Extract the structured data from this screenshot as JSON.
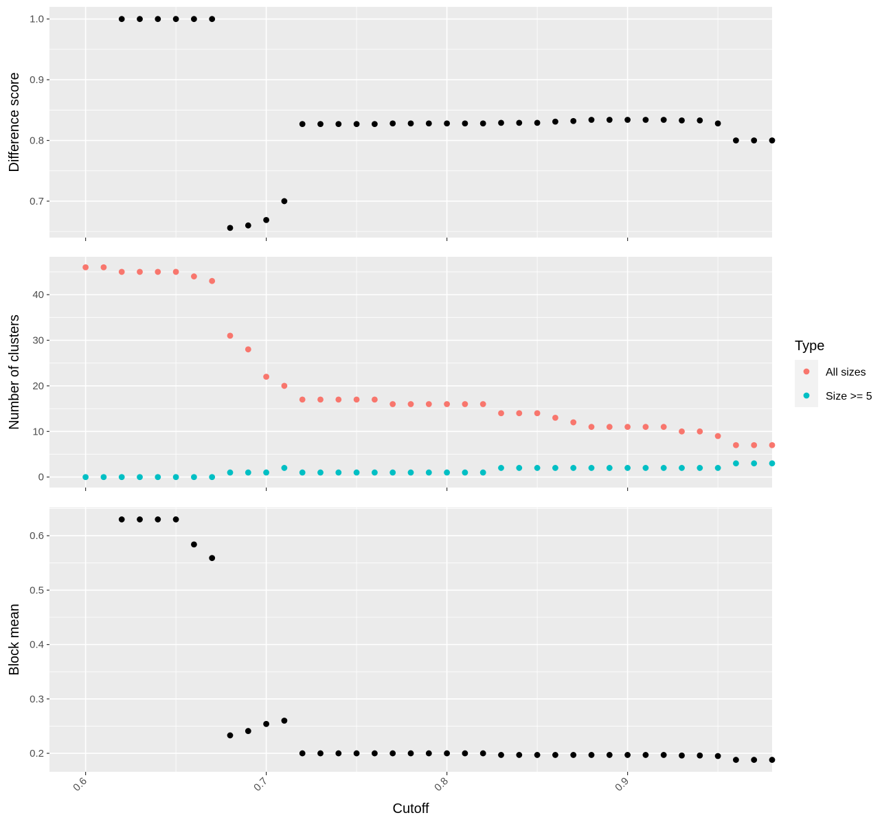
{
  "chart_data": [
    {
      "type": "scatter",
      "ylabel": "Difference score",
      "ylim": [
        0.64,
        1.02
      ],
      "yticks": [
        0.7,
        0.8,
        0.9,
        1.0
      ],
      "ytick_labels": [
        "0.7",
        "0.8",
        "0.9",
        "1.0"
      ],
      "xlim": [
        0.58,
        0.98
      ],
      "xticks": [
        0.6,
        0.7,
        0.8,
        0.9
      ],
      "grid": true,
      "series": [
        {
          "color": "#000000",
          "x": [
            0.62,
            0.63,
            0.64,
            0.65,
            0.66,
            0.67,
            0.68,
            0.69,
            0.7,
            0.71,
            0.72,
            0.73,
            0.74,
            0.75,
            0.76,
            0.77,
            0.78,
            0.79,
            0.8,
            0.81,
            0.82,
            0.83,
            0.84,
            0.85,
            0.86,
            0.87,
            0.88,
            0.89,
            0.9,
            0.91,
            0.92,
            0.93,
            0.94,
            0.95,
            0.96,
            0.97,
            0.98
          ],
          "y": [
            1.0,
            1.0,
            1.0,
            1.0,
            1.0,
            1.0,
            0.656,
            0.66,
            0.669,
            0.7,
            0.827,
            0.827,
            0.827,
            0.827,
            0.827,
            0.828,
            0.828,
            0.828,
            0.828,
            0.828,
            0.828,
            0.829,
            0.829,
            0.829,
            0.831,
            0.832,
            0.834,
            0.834,
            0.834,
            0.834,
            0.834,
            0.833,
            0.833,
            0.828,
            0.8,
            0.8,
            0.8
          ]
        }
      ]
    },
    {
      "type": "scatter",
      "ylabel": "Number of clusters",
      "ylim": [
        -2.3,
        48.3
      ],
      "yticks": [
        0,
        10,
        20,
        30,
        40
      ],
      "ytick_labels": [
        "0",
        "10",
        "20",
        "30",
        "40"
      ],
      "xlim": [
        0.58,
        0.98
      ],
      "xticks": [
        0.6,
        0.7,
        0.8,
        0.9
      ],
      "grid": true,
      "legend": {
        "title": "Type",
        "placement": "right",
        "entries": [
          {
            "label": "All sizes",
            "color": "#F8766D"
          },
          {
            "label": "Size >= 5",
            "color": "#00BFC4"
          }
        ]
      },
      "series": [
        {
          "name": "All sizes",
          "color": "#F8766D",
          "x": [
            0.6,
            0.61,
            0.62,
            0.63,
            0.64,
            0.65,
            0.66,
            0.67,
            0.68,
            0.69,
            0.7,
            0.71,
            0.72,
            0.73,
            0.74,
            0.75,
            0.76,
            0.77,
            0.78,
            0.79,
            0.8,
            0.81,
            0.82,
            0.83,
            0.84,
            0.85,
            0.86,
            0.87,
            0.88,
            0.89,
            0.9,
            0.91,
            0.92,
            0.93,
            0.94,
            0.95,
            0.96,
            0.97,
            0.98
          ],
          "y": [
            46,
            46,
            45,
            45,
            45,
            45,
            44,
            43,
            31,
            28,
            22,
            20,
            17,
            17,
            17,
            17,
            17,
            16,
            16,
            16,
            16,
            16,
            16,
            14,
            14,
            14,
            13,
            12,
            11,
            11,
            11,
            11,
            11,
            10,
            10,
            9,
            7,
            7,
            7
          ]
        },
        {
          "name": "Size >= 5",
          "color": "#00BFC4",
          "x": [
            0.6,
            0.61,
            0.62,
            0.63,
            0.64,
            0.65,
            0.66,
            0.67,
            0.68,
            0.69,
            0.7,
            0.71,
            0.72,
            0.73,
            0.74,
            0.75,
            0.76,
            0.77,
            0.78,
            0.79,
            0.8,
            0.81,
            0.82,
            0.83,
            0.84,
            0.85,
            0.86,
            0.87,
            0.88,
            0.89,
            0.9,
            0.91,
            0.92,
            0.93,
            0.94,
            0.95,
            0.96,
            0.97,
            0.98
          ],
          "y": [
            0,
            0,
            0,
            0,
            0,
            0,
            0,
            0,
            1,
            1,
            1,
            2,
            1,
            1,
            1,
            1,
            1,
            1,
            1,
            1,
            1,
            1,
            1,
            2,
            2,
            2,
            2,
            2,
            2,
            2,
            2,
            2,
            2,
            2,
            2,
            2,
            3,
            3,
            3
          ]
        }
      ]
    },
    {
      "type": "scatter",
      "ylabel": "Block mean",
      "xlabel": "Cutoff",
      "ylim": [
        0.166,
        0.652
      ],
      "yticks": [
        0.2,
        0.3,
        0.4,
        0.5,
        0.6
      ],
      "ytick_labels": [
        "0.2",
        "0.3",
        "0.4",
        "0.5",
        "0.6"
      ],
      "xlim": [
        0.58,
        0.98
      ],
      "xticks": [
        0.6,
        0.7,
        0.8,
        0.9
      ],
      "xtick_labels": [
        "0.6",
        "0.7",
        "0.8",
        "0.9"
      ],
      "grid": true,
      "series": [
        {
          "color": "#000000",
          "x": [
            0.62,
            0.63,
            0.64,
            0.65,
            0.66,
            0.67,
            0.68,
            0.69,
            0.7,
            0.71,
            0.72,
            0.73,
            0.74,
            0.75,
            0.76,
            0.77,
            0.78,
            0.79,
            0.8,
            0.81,
            0.82,
            0.83,
            0.84,
            0.85,
            0.86,
            0.87,
            0.88,
            0.89,
            0.9,
            0.91,
            0.92,
            0.93,
            0.94,
            0.95,
            0.96,
            0.97,
            0.98
          ],
          "y": [
            0.63,
            0.63,
            0.63,
            0.63,
            0.584,
            0.559,
            0.233,
            0.241,
            0.254,
            0.26,
            0.2,
            0.2,
            0.2,
            0.2,
            0.2,
            0.2,
            0.2,
            0.2,
            0.2,
            0.2,
            0.2,
            0.197,
            0.197,
            0.197,
            0.197,
            0.197,
            0.197,
            0.197,
            0.197,
            0.197,
            0.197,
            0.196,
            0.196,
            0.195,
            0.188,
            0.188,
            0.188
          ]
        }
      ]
    }
  ]
}
